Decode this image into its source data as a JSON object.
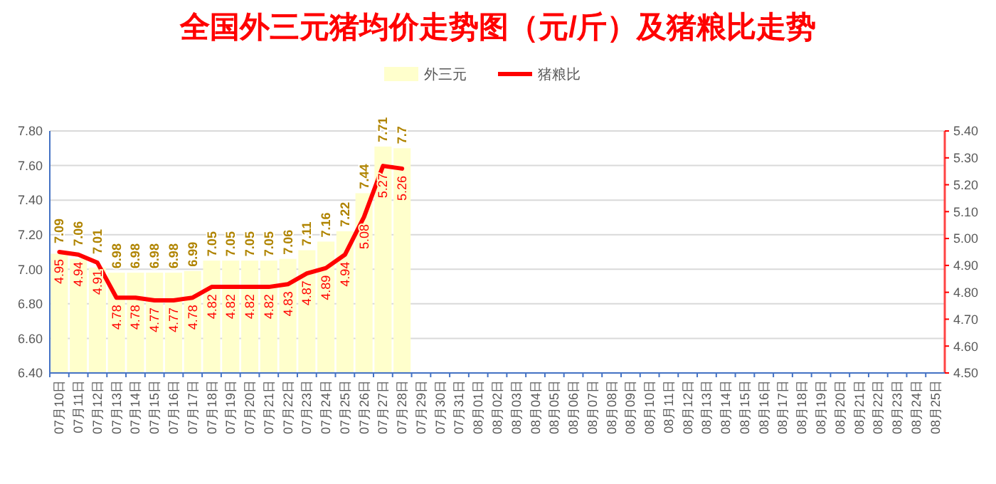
{
  "chart_data": {
    "type": "bar",
    "title": "全国外三元猪均价走势图（元/斤）及猪粮比走势",
    "categories": [
      "07月10日",
      "07月11日",
      "07月12日",
      "07月13日",
      "07月14日",
      "07月15日",
      "07月16日",
      "07月17日",
      "07月18日",
      "07月19日",
      "07月20日",
      "07月21日",
      "07月22日",
      "07月23日",
      "07月24日",
      "07月25日",
      "07月26日",
      "07月27日",
      "07月28日",
      "07月29日",
      "07月30日",
      "07月31日",
      "08月01日",
      "08月02日",
      "08月03日",
      "08月04日",
      "08月05日",
      "08月06日",
      "08月07日",
      "08月08日",
      "08月09日",
      "08月10日",
      "08月11日",
      "08月12日",
      "08月13日",
      "08月14日",
      "08月15日",
      "08月16日",
      "08月17日",
      "08月18日",
      "08月19日",
      "08月20日",
      "08月21日",
      "08月22日",
      "08月23日",
      "08月24日",
      "08月25日"
    ],
    "series": [
      {
        "name": "外三元",
        "color": "#ffffcc",
        "values": [
          7.09,
          7.06,
          7.01,
          6.98,
          6.98,
          6.98,
          6.98,
          6.99,
          7.05,
          7.05,
          7.05,
          7.05,
          7.06,
          7.11,
          7.16,
          7.22,
          7.44,
          7.71,
          7.7,
          null,
          null,
          null,
          null,
          null,
          null,
          null,
          null,
          null,
          null,
          null,
          null,
          null,
          null,
          null,
          null,
          null,
          null,
          null,
          null,
          null,
          null,
          null,
          null,
          null,
          null,
          null,
          null
        ]
      },
      {
        "name": "猪粮比",
        "type": "line",
        "axis": "y2",
        "color": "#ff0000",
        "values": [
          4.95,
          4.94,
          4.91,
          4.78,
          4.78,
          4.77,
          4.77,
          4.78,
          4.82,
          4.82,
          4.82,
          4.82,
          4.83,
          4.87,
          4.89,
          4.94,
          5.08,
          5.27,
          5.26,
          null,
          null,
          null,
          null,
          null,
          null,
          null,
          null,
          null,
          null,
          null,
          null,
          null,
          null,
          null,
          null,
          null,
          null,
          null,
          null,
          null,
          null,
          null,
          null,
          null,
          null,
          null,
          null
        ]
      }
    ],
    "ylim": [
      6.4,
      7.8
    ],
    "yticks": [
      {
        "value": 6.4,
        "label": "6.40"
      },
      {
        "value": 6.6,
        "label": "6.60"
      },
      {
        "value": 6.8,
        "label": "6.80"
      },
      {
        "value": 7.0,
        "label": "7.00"
      },
      {
        "value": 7.2,
        "label": "7.20"
      },
      {
        "value": 7.4,
        "label": "7.40"
      },
      {
        "value": 7.6,
        "label": "7.60"
      },
      {
        "value": 7.8,
        "label": "7.80"
      }
    ],
    "y2lim": [
      4.5,
      5.4
    ],
    "y2ticks": [
      {
        "value": 4.5,
        "label": "4.50"
      },
      {
        "value": 4.6,
        "label": "4.60"
      },
      {
        "value": 4.7,
        "label": "4.70"
      },
      {
        "value": 4.8,
        "label": "4.80"
      },
      {
        "value": 4.9,
        "label": "4.90"
      },
      {
        "value": 5.0,
        "label": "5.00"
      },
      {
        "value": 5.1,
        "label": "5.10"
      },
      {
        "value": 5.2,
        "label": "5.20"
      },
      {
        "value": 5.3,
        "label": "5.30"
      },
      {
        "value": 5.4,
        "label": "5.40"
      }
    ],
    "grid": "y",
    "legend": "top",
    "data_labels": true,
    "marker": "none",
    "line_style": "solid"
  }
}
